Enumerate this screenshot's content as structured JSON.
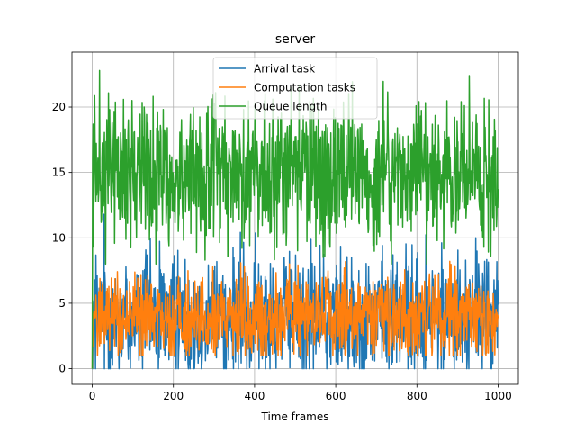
{
  "chart_data": {
    "type": "line",
    "title": "server",
    "xlabel": "Time frames",
    "ylabel": "",
    "xlim": [
      -50,
      1050
    ],
    "ylim": [
      -1.2,
      24.2
    ],
    "xticks": [
      0,
      200,
      400,
      600,
      800,
      1000
    ],
    "yticks": [
      0,
      5,
      10,
      15,
      20
    ],
    "grid": true,
    "legend_position": "upper center",
    "n_points": 1001,
    "series": [
      {
        "name": "Arrival task",
        "color": "#1f77b4",
        "start": 0,
        "mean": 4.0,
        "min": 0,
        "max": 11.8,
        "spread": 2.4
      },
      {
        "name": "Computation tasks",
        "color": "#ff7f0e",
        "start": 0,
        "mean": 4.0,
        "min": 1.0,
        "max": 9.2,
        "spread": 1.6
      },
      {
        "name": "Queue length",
        "color": "#2ca02c",
        "start": 0,
        "mean": 15.0,
        "min": 8.0,
        "max": 22.8,
        "spread": 2.8
      }
    ]
  }
}
